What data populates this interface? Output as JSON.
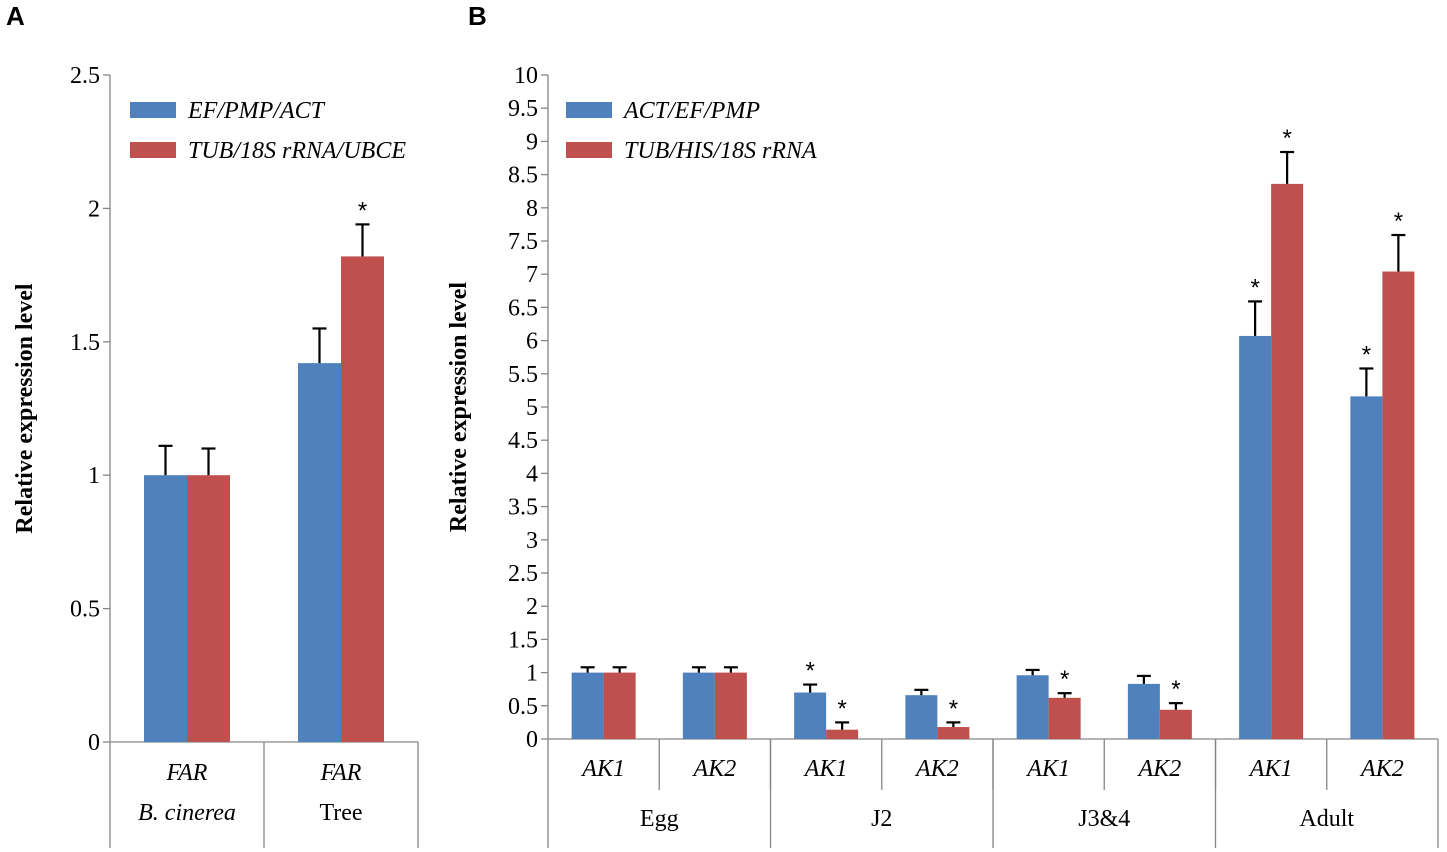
{
  "colors": {
    "series1": "#4f81bd",
    "series2": "#c0504d"
  },
  "panels": {
    "a": {
      "letter": "A"
    },
    "b": {
      "letter": "B"
    }
  },
  "chart_data": [
    {
      "type": "bar",
      "panel": "A",
      "ylabel": "Relative expression level",
      "ylim": [
        0,
        2.5
      ],
      "yticks": [
        "0",
        "0.5",
        "1",
        "1.5",
        "2",
        "2.5"
      ],
      "categories": [
        "FAR",
        "FAR"
      ],
      "groups": [
        "B. cinerea",
        "Tree"
      ],
      "legend_position": "top-left",
      "series": [
        {
          "name": "EF/PMP/ACT",
          "values": [
            1.0,
            1.42
          ],
          "errors": [
            0.11,
            0.13
          ],
          "significant": [
            false,
            false
          ]
        },
        {
          "name": "TUB/18S rRNA/UBCE",
          "values": [
            1.0,
            1.82
          ],
          "errors": [
            0.1,
            0.12
          ],
          "significant": [
            false,
            true
          ]
        }
      ],
      "marker": "*"
    },
    {
      "type": "bar",
      "panel": "B",
      "ylabel": "Relative expression level",
      "ylim": [
        0,
        10
      ],
      "yticks": [
        "0",
        "0.5",
        "1",
        "1.5",
        "2",
        "2.5",
        "3",
        "3.5",
        "4",
        "4.5",
        "5",
        "5.5",
        "6",
        "6.5",
        "7",
        "7.5",
        "8",
        "8.5",
        "9",
        "9.5",
        "10"
      ],
      "categories": [
        "AK1",
        "AK2",
        "AK1",
        "AK2",
        "AK1",
        "AK2",
        "AK1",
        "AK2"
      ],
      "groups": [
        "Egg",
        "J2",
        "J3&4",
        "Adult"
      ],
      "legend_position": "top-left",
      "series": [
        {
          "name": "ACT/EF/PMP",
          "values": [
            1.0,
            1.0,
            0.7,
            0.66,
            0.96,
            0.83,
            6.07,
            5.16
          ],
          "errors": [
            0.08,
            0.08,
            0.12,
            0.08,
            0.08,
            0.12,
            0.52,
            0.42
          ],
          "significant": [
            false,
            false,
            true,
            false,
            false,
            false,
            true,
            true
          ]
        },
        {
          "name": "TUB/HIS/18S rRNA",
          "values": [
            1.0,
            1.0,
            0.14,
            0.18,
            0.62,
            0.44,
            8.36,
            7.04
          ],
          "errors": [
            0.08,
            0.08,
            0.11,
            0.07,
            0.07,
            0.1,
            0.48,
            0.55
          ],
          "significant": [
            false,
            false,
            true,
            true,
            true,
            true,
            true,
            true
          ]
        }
      ],
      "marker": "*"
    }
  ]
}
